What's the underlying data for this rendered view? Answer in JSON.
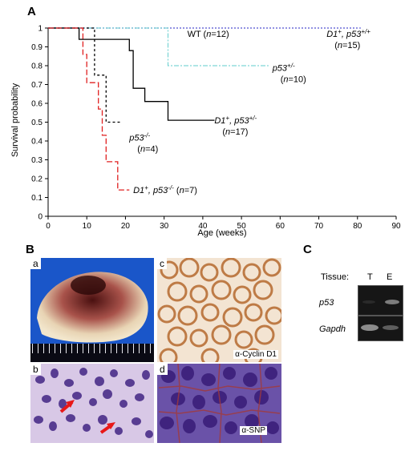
{
  "panels": {
    "A": "A",
    "B": "B",
    "C": "C",
    "sub_a": "a",
    "sub_b": "b",
    "sub_c": "c",
    "sub_d": "d"
  },
  "micrograph_labels": {
    "c": "α-Cyclin D1",
    "d": "α-SNP"
  },
  "gel": {
    "tissue_label": "Tissue:",
    "lane_T": "T",
    "lane_E": "E",
    "row1": "p53",
    "row2": "Gapdh"
  },
  "chart_data": {
    "type": "line",
    "subtype": "kaplan-meier step",
    "xlabel": "Age (weeks)",
    "ylabel": "Survival probability",
    "xlim": [
      0,
      90
    ],
    "ylim": [
      0,
      1
    ],
    "xticks": [
      0,
      10,
      20,
      30,
      40,
      50,
      60,
      70,
      80,
      90
    ],
    "yticks": [
      0,
      0.1,
      0.2,
      0.3,
      0.4,
      0.5,
      0.6,
      0.7,
      0.8,
      0.9,
      1
    ],
    "grid": false,
    "series": [
      {
        "key": "wt",
        "color": "#5a5acf",
        "dash": "2,2",
        "points": [
          [
            0,
            1
          ],
          [
            80,
            1
          ]
        ]
      },
      {
        "key": "d1_p53_pp",
        "color": "#6b6bd8",
        "dash": "2,2",
        "points": [
          [
            0,
            1
          ],
          [
            81,
            1
          ]
        ]
      },
      {
        "key": "p53_het",
        "color": "#7fd6d6",
        "dash": "6,2,2,2",
        "points": [
          [
            0,
            1
          ],
          [
            31,
            1
          ],
          [
            31,
            0.8
          ],
          [
            57,
            0.8
          ]
        ]
      },
      {
        "key": "d1_p53_het",
        "color": "#000000",
        "dash": "",
        "points": [
          [
            0,
            1
          ],
          [
            8,
            1
          ],
          [
            8,
            0.94
          ],
          [
            21,
            0.94
          ],
          [
            21,
            0.88
          ],
          [
            22,
            0.88
          ],
          [
            22,
            0.68
          ],
          [
            25,
            0.68
          ],
          [
            25,
            0.61
          ],
          [
            31,
            0.61
          ],
          [
            31,
            0.51
          ],
          [
            43,
            0.51
          ]
        ]
      },
      {
        "key": "p53_null",
        "color": "#000000",
        "dash": "3,3",
        "points": [
          [
            0,
            1
          ],
          [
            12,
            1
          ],
          [
            12,
            0.75
          ],
          [
            15,
            0.75
          ],
          [
            15,
            0.5
          ],
          [
            19,
            0.5
          ]
        ]
      },
      {
        "key": "d1_p53_null",
        "color": "#e02020",
        "dash": "7,3",
        "points": [
          [
            0,
            1
          ],
          [
            9,
            1
          ],
          [
            9,
            0.86
          ],
          [
            10,
            0.86
          ],
          [
            10,
            0.71
          ],
          [
            13,
            0.71
          ],
          [
            13,
            0.57
          ],
          [
            14,
            0.57
          ],
          [
            14,
            0.43
          ],
          [
            15,
            0.43
          ],
          [
            15,
            0.29
          ],
          [
            18,
            0.29
          ],
          [
            18,
            0.14
          ],
          [
            21,
            0.14
          ]
        ]
      }
    ],
    "annotations": [
      {
        "key": "wt",
        "text": "WT (n=12)",
        "x": 36,
        "y": 0.97
      },
      {
        "key": "d1_p53_pp",
        "text": "D1+, p53+/+ (n=15)",
        "x": 72,
        "y": 0.97
      },
      {
        "key": "p53_het",
        "text": "p53+/- (n=10)",
        "x": 58,
        "y": 0.79
      },
      {
        "key": "d1_p53_het",
        "text": "D1+, p53+/- (n=17)",
        "x": 43,
        "y": 0.51
      },
      {
        "key": "p53_null",
        "text": "p53-/- (n=4)",
        "x": 21,
        "y": 0.42
      },
      {
        "key": "d1_p53_null",
        "text": "D1+, p53-/- (n=7)",
        "x": 22,
        "y": 0.14
      }
    ]
  }
}
